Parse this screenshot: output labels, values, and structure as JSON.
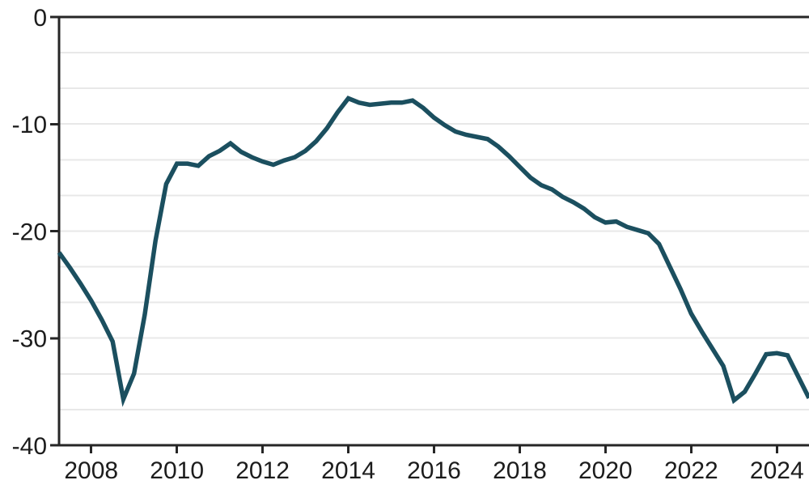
{
  "chart_data": {
    "type": "line",
    "title": "",
    "xlabel": "",
    "ylabel": "",
    "xlim": [
      2007.25,
      2024.75
    ],
    "ylim": [
      -40,
      0
    ],
    "x_ticks": [
      2008,
      2010,
      2012,
      2014,
      2016,
      2018,
      2020,
      2022,
      2024
    ],
    "x_tick_labels": [
      "2008",
      "2010",
      "2012",
      "2014",
      "2016",
      "2018",
      "2020",
      "2022",
      "2024"
    ],
    "y_ticks": [
      0,
      -10,
      -20,
      -30,
      -40
    ],
    "y_tick_labels": [
      "0",
      "-10",
      "-20",
      "-30",
      "-40"
    ],
    "grid": "horizontal",
    "gridline_step": 3.3333,
    "legend": "none",
    "colors": {
      "line": "#1b4f5f",
      "axis": "#262626",
      "gridline": "#e8e8e8",
      "tick_label": "#1c1c1c",
      "background": "#ffffff"
    },
    "series": [
      {
        "name": "series-1",
        "x": [
          2007.25,
          2007.5,
          2007.75,
          2008.0,
          2008.25,
          2008.5,
          2008.75,
          2009.0,
          2009.25,
          2009.5,
          2009.75,
          2010.0,
          2010.25,
          2010.5,
          2010.75,
          2011.0,
          2011.25,
          2011.5,
          2011.75,
          2012.0,
          2012.25,
          2012.5,
          2012.75,
          2013.0,
          2013.25,
          2013.5,
          2013.75,
          2014.0,
          2014.25,
          2014.5,
          2014.75,
          2015.0,
          2015.25,
          2015.5,
          2015.75,
          2016.0,
          2016.25,
          2016.5,
          2016.75,
          2017.0,
          2017.25,
          2017.5,
          2017.75,
          2018.0,
          2018.25,
          2018.5,
          2018.75,
          2019.0,
          2019.25,
          2019.5,
          2019.75,
          2020.0,
          2020.25,
          2020.5,
          2020.75,
          2021.0,
          2021.25,
          2021.5,
          2021.75,
          2022.0,
          2022.25,
          2022.5,
          2022.75,
          2023.0,
          2023.25,
          2023.5,
          2023.75,
          2024.0,
          2024.25,
          2024.5,
          2024.75
        ],
        "values": [
          -22.0,
          -23.4,
          -24.9,
          -26.5,
          -28.3,
          -30.3,
          -35.7,
          -33.3,
          -27.8,
          -20.9,
          -15.6,
          -13.7,
          -13.7,
          -13.9,
          -13.0,
          -12.5,
          -11.8,
          -12.6,
          -13.1,
          -13.5,
          -13.8,
          -13.4,
          -13.1,
          -12.5,
          -11.6,
          -10.4,
          -8.9,
          -7.6,
          -8.0,
          -8.2,
          -8.1,
          -8.0,
          -8.0,
          -7.8,
          -8.5,
          -9.4,
          -10.1,
          -10.7,
          -11.0,
          -11.2,
          -11.4,
          -12.1,
          -13.0,
          -14.0,
          -15.0,
          -15.7,
          -16.1,
          -16.8,
          -17.3,
          -17.9,
          -18.7,
          -19.2,
          -19.1,
          -19.6,
          -19.9,
          -20.2,
          -21.2,
          -23.3,
          -25.4,
          -27.7,
          -29.4,
          -31.0,
          -32.6,
          -35.8,
          -35.0,
          -33.3,
          -31.5,
          -31.4,
          -31.6,
          -33.6,
          -35.6
        ]
      }
    ]
  }
}
